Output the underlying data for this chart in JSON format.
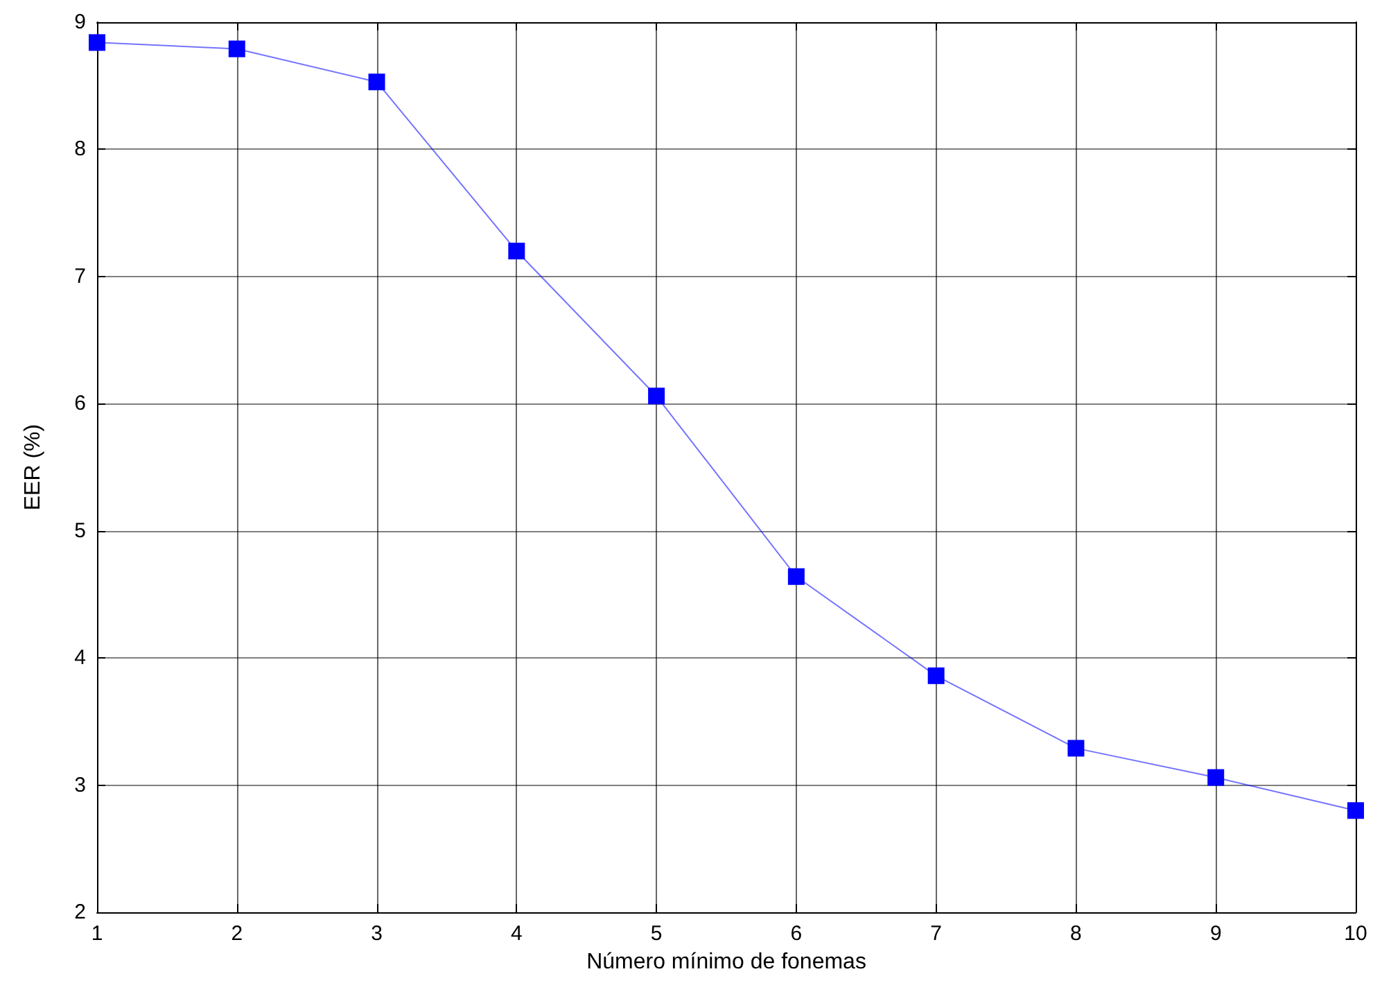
{
  "chart_data": {
    "type": "line",
    "xlabel": "Número mínimo de fonemas",
    "ylabel": "EER (%)",
    "x": [
      1,
      2,
      3,
      4,
      5,
      6,
      7,
      8,
      9,
      10
    ],
    "series": [
      {
        "color": "#0000ff",
        "values": [
          8.84,
          8.79,
          8.53,
          7.2,
          6.06,
          4.64,
          3.86,
          3.29,
          3.06,
          2.8
        ]
      }
    ],
    "xlim": [
      1,
      10
    ],
    "xticks": [
      1,
      2,
      3,
      4,
      5,
      6,
      7,
      8,
      9,
      10
    ],
    "ylim": [
      2,
      9
    ],
    "yticks": [
      2,
      3,
      4,
      5,
      6,
      7,
      8,
      9
    ],
    "grid": true,
    "marker": "square",
    "line_style": "solid"
  }
}
